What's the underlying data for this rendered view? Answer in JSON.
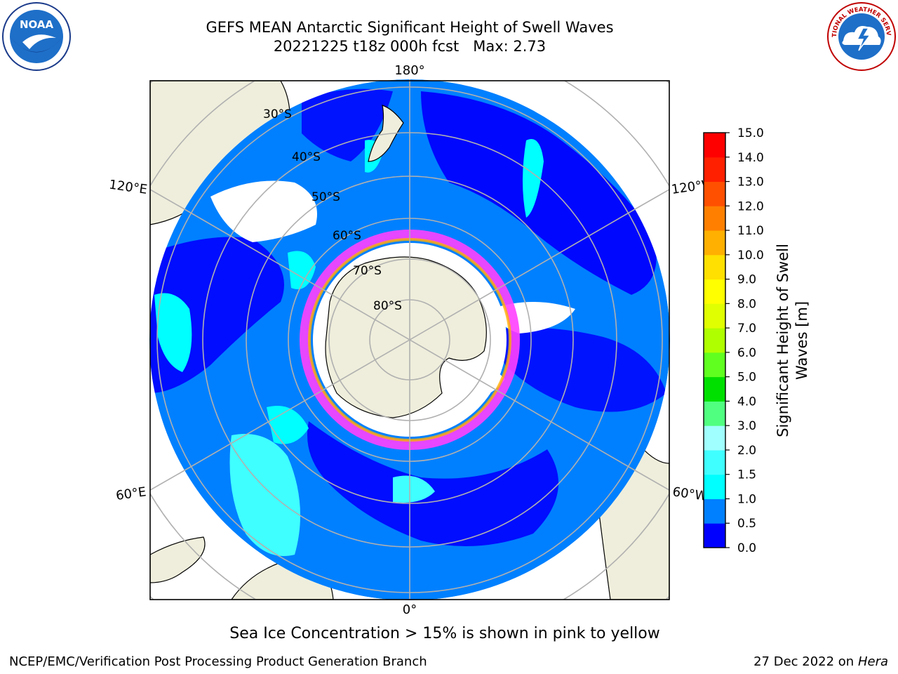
{
  "title": {
    "line1": "GEFS MEAN Antarctic Significant Height of Swell Waves",
    "line2": "20221225 t18z 000h fcst   Max: 2.73"
  },
  "map": {
    "projection": "south-polar-stereographic",
    "longitude_labels": {
      "top": "180°",
      "bottom": "0°",
      "left_upper": "120°E",
      "left_lower": "60°E",
      "right_upper": "120°W",
      "right_lower": "60°W"
    },
    "latitude_labels": [
      "30°S",
      "40°S",
      "50°S",
      "60°S",
      "70°S",
      "80°S"
    ],
    "colors": {
      "land": "#efeedc",
      "ice_free_ocean_low": "#0000ff",
      "ocean_mid": "#0080ff",
      "ocean_high": "#00ffff",
      "sea_ice": "#ff40ff",
      "grid": "#b0b0b0"
    }
  },
  "colorbar": {
    "title_line1": "Significant Height of Swell",
    "title_line2": "Waves [m]",
    "ticks": [
      "0.0",
      "0.5",
      "1.0",
      "1.5",
      "2.0",
      "3.0",
      "4.0",
      "5.0",
      "6.0",
      "7.0",
      "8.0",
      "9.0",
      "10.0",
      "11.0",
      "12.0",
      "13.0",
      "14.0",
      "15.0"
    ],
    "colors": [
      "#0000ff",
      "#0080ff",
      "#00ffff",
      "#40ffff",
      "#a0ffff",
      "#50ff80",
      "#00e000",
      "#60ff20",
      "#b0ff00",
      "#e0ff00",
      "#ffff00",
      "#ffe000",
      "#ffb000",
      "#ff8000",
      "#ff5000",
      "#ff2000",
      "#ff0000"
    ]
  },
  "footnote": "Sea Ice Concentration > 15% is shown in pink to yellow",
  "credit_left": "NCEP/EMC/Verification Post Processing Product Generation Branch",
  "credit_right_date": "27 Dec 2022 on",
  "credit_right_host": "Hera",
  "logos": {
    "left": "NOAA",
    "right": "NATIONAL WEATHER SERVICE"
  }
}
